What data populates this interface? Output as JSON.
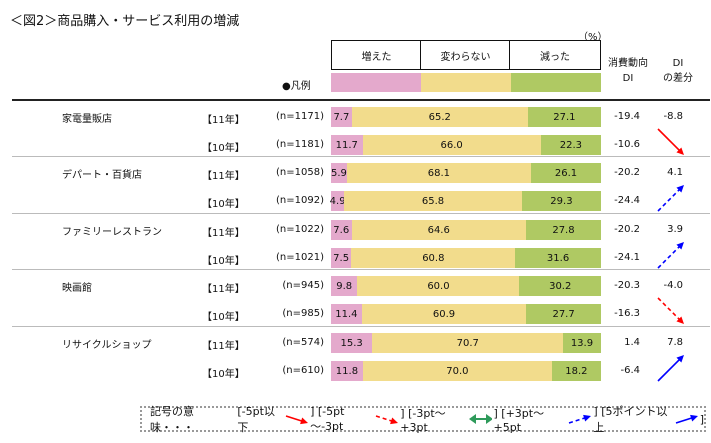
{
  "title": "＜図2＞商品購入・サービス利用の増減",
  "unit": "（%）",
  "legend_label": "●凡例",
  "columns": {
    "increase": "増えた",
    "same": "変わらない",
    "decrease": "減った",
    "di": [
      "消費動向",
      "DI"
    ],
    "diff": [
      "DI",
      "の差分"
    ]
  },
  "colors": {
    "increase": "#e4a9cc",
    "same": "#f2dc8c",
    "decrease": "#afc963",
    "down_arrow": "#ff0000",
    "up_arrow": "#0000ff",
    "flat_arrow": "#2e9a5a"
  },
  "chart_data": {
    "type": "bar",
    "stacked": true,
    "orientation": "horizontal",
    "xlim": [
      0,
      100
    ],
    "series_names": [
      "増えた",
      "変わらない",
      "減った"
    ],
    "groups": [
      {
        "category": "家電量販店",
        "diff": "-8.8",
        "trend": "down-strong",
        "rows": [
          {
            "year": "【11年】",
            "n": "(n=1171)",
            "values": [
              7.7,
              65.2,
              27.1
            ],
            "di": "-19.4"
          },
          {
            "year": "【10年】",
            "n": "(n=1181)",
            "values": [
              11.7,
              66.0,
              22.3
            ],
            "di": "-10.6"
          }
        ]
      },
      {
        "category": "デパート・百貨店",
        "diff": "4.1",
        "trend": "up-moderate",
        "rows": [
          {
            "year": "【11年】",
            "n": "(n=1058)",
            "values": [
              5.9,
              68.1,
              26.1
            ],
            "di": "-20.2"
          },
          {
            "year": "【10年】",
            "n": "(n=1092)",
            "values": [
              4.9,
              65.8,
              29.3
            ],
            "di": "-24.4"
          }
        ]
      },
      {
        "category": "ファミリーレストラン",
        "diff": "3.9",
        "trend": "up-moderate",
        "rows": [
          {
            "year": "【11年】",
            "n": "(n=1022)",
            "values": [
              7.6,
              64.6,
              27.8
            ],
            "di": "-20.2"
          },
          {
            "year": "【10年】",
            "n": "(n=1021)",
            "values": [
              7.5,
              60.8,
              31.6
            ],
            "di": "-24.1"
          }
        ]
      },
      {
        "category": "映画館",
        "diff": "-4.0",
        "trend": "down-moderate",
        "rows": [
          {
            "year": "【11年】",
            "n": "(n=945)",
            "values": [
              9.8,
              60.0,
              30.2
            ],
            "di": "-20.3"
          },
          {
            "year": "【10年】",
            "n": "(n=985)",
            "values": [
              11.4,
              60.9,
              27.7
            ],
            "di": "-16.3"
          }
        ]
      },
      {
        "category": "リサイクルショップ",
        "diff": "7.8",
        "trend": "up-strong",
        "rows": [
          {
            "year": "【11年】",
            "n": "(n=574)",
            "values": [
              15.3,
              70.7,
              13.9
            ],
            "di": "1.4"
          },
          {
            "year": "【10年】",
            "n": "(n=610)",
            "values": [
              11.8,
              70.0,
              18.2
            ],
            "di": "-6.4"
          }
        ]
      }
    ]
  },
  "symbol_legend": {
    "prefix": "記号の意味・・・",
    "items": [
      "[-5pt以下",
      "] [-5pt～-3pt",
      "] [-3pt～+3pt",
      "] [+3pt～+5pt",
      "] [5ポイント以上"
    ],
    "suffix": "]"
  }
}
